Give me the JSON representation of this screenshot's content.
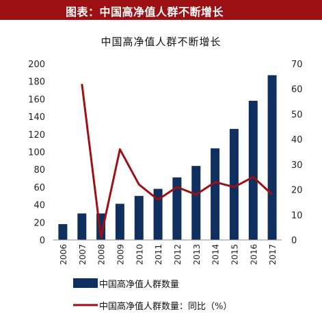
{
  "banner": {
    "title": "图表：中国高净值人群不断增长"
  },
  "chart_data": {
    "type": "bar",
    "title": "中国高净值人群不断增长",
    "categories": [
      "2006",
      "2007",
      "2008",
      "2009",
      "2010",
      "2011",
      "2012",
      "2013",
      "2014",
      "2015",
      "2016",
      "2017"
    ],
    "series": [
      {
        "name": "中国高净值人群数量",
        "kind": "bar",
        "axis": "left",
        "color": "#0f2f5f",
        "values": [
          18,
          30,
          30,
          41,
          50,
          58,
          71,
          84,
          104,
          126,
          158,
          187
        ]
      },
      {
        "name": "中国高净值人群数量：同比（%）",
        "kind": "line",
        "axis": "right",
        "color": "#9c1014",
        "values": [
          null,
          62,
          1,
          36,
          22,
          16,
          21,
          18,
          23,
          21,
          25,
          18
        ]
      }
    ],
    "ylim_left": [
      0,
      200
    ],
    "yticks_left": [
      "0",
      "20",
      "40",
      "60",
      "80",
      "100",
      "120",
      "140",
      "160",
      "180",
      "200"
    ],
    "ylim_right": [
      0,
      70
    ],
    "yticks_right": [
      "0",
      "10",
      "20",
      "30",
      "40",
      "50",
      "60",
      "70"
    ],
    "grid": false,
    "legend_position": "bottom"
  },
  "legend": {
    "bar_label": "中国高净值人群数量",
    "line_label": "中国高净值人群数量：同比（%）"
  }
}
